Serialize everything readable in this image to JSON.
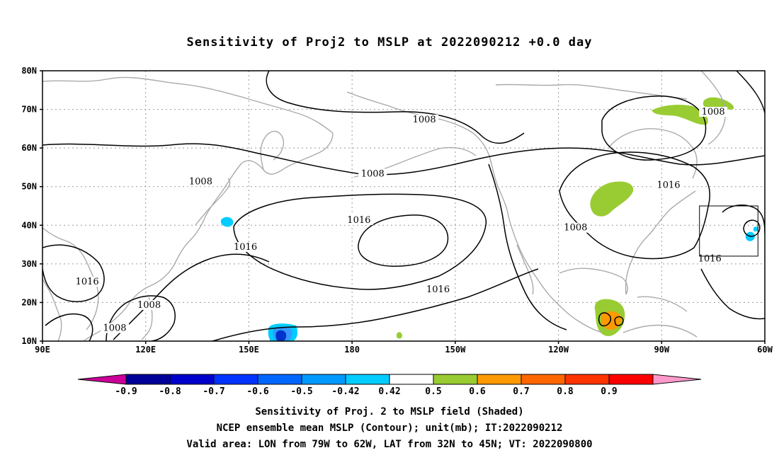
{
  "title": "Sensitivity of Proj2 to MSLP at 2022090212 +0.0 day",
  "map": {
    "lon_range": [
      90,
      300
    ],
    "lat_range": [
      10,
      80
    ],
    "lat_labels": [
      "80N",
      "70N",
      "60N",
      "50N",
      "40N",
      "30N",
      "20N",
      "10N"
    ],
    "lat_values": [
      80,
      70,
      60,
      50,
      40,
      30,
      20,
      10
    ],
    "lon_labels": [
      "90E",
      "120E",
      "150E",
      "180",
      "150W",
      "120W",
      "90W",
      "60W"
    ],
    "lon_values": [
      90,
      120,
      150,
      180,
      210,
      240,
      270,
      300
    ],
    "grid": "dotted",
    "contour_interval_labels": [
      {
        "text": "1008",
        "lon": 201,
        "lat": 67
      },
      {
        "text": "1008",
        "lon": 186,
        "lat": 53
      },
      {
        "text": "1008",
        "lon": 136,
        "lat": 51
      },
      {
        "text": "1016",
        "lon": 182,
        "lat": 41
      },
      {
        "text": "1016",
        "lon": 149,
        "lat": 34
      },
      {
        "text": "1016",
        "lon": 103,
        "lat": 25
      },
      {
        "text": "1008",
        "lon": 121,
        "lat": 19
      },
      {
        "text": "1008",
        "lon": 111,
        "lat": 13
      },
      {
        "text": "1016",
        "lon": 205,
        "lat": 23
      },
      {
        "text": "1008",
        "lon": 245,
        "lat": 39
      },
      {
        "text": "1016",
        "lon": 272,
        "lat": 50
      },
      {
        "text": "1008",
        "lon": 285,
        "lat": 69
      },
      {
        "text": "1016",
        "lon": 284,
        "lat": 31
      }
    ],
    "valid_area_box": {
      "lon_min": 281,
      "lon_max": 298,
      "lat_min": 32,
      "lat_max": 45
    },
    "colors": {
      "contour": "#000000",
      "coast": "#aaaaaa",
      "green": "#99cc33",
      "orange": "#ff9900",
      "cyan": "#00ccff",
      "blue": "#3399ff",
      "darkblue": "#0033cc"
    }
  },
  "colorbar": {
    "levels": [
      "-0.9",
      "-0.8",
      "-0.7",
      "-0.6",
      "-0.5",
      "-0.42",
      "0.42",
      "0.5",
      "0.6",
      "0.7",
      "0.8",
      "0.9"
    ],
    "colors": [
      "#cc0099",
      "#000099",
      "#0000cc",
      "#0033ff",
      "#0066ff",
      "#0099ff",
      "#00ccff",
      "#ffffff",
      "#99cc33",
      "#ff9900",
      "#ff6600",
      "#ff3300",
      "#ff0000",
      "#ff99cc"
    ]
  },
  "captions": [
    "Sensitivity of Proj. 2 to MSLP field (Shaded)",
    "NCEP ensemble mean MSLP (Contour); unit(mb); IT:2022090212",
    "Valid area: LON from 79W to 62W, LAT from 32N to 45N; VT: 2022090800"
  ]
}
